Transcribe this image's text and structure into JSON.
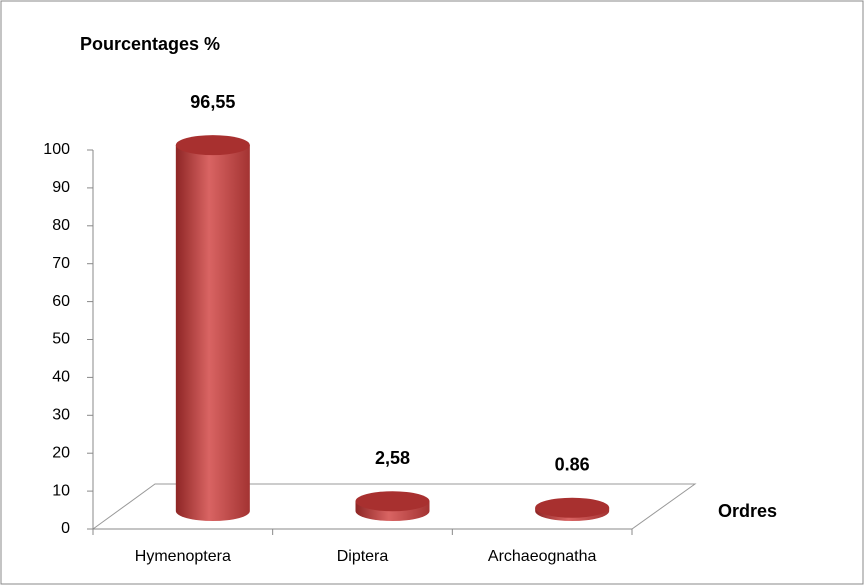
{
  "chart_data": {
    "type": "bar3d",
    "y_label": "Pourcentages %",
    "x_label": "Ordres",
    "categories": [
      "Hymenoptera",
      "Diptera",
      "Archaeognatha"
    ],
    "values": [
      96.55,
      2.58,
      0.86
    ],
    "value_labels": [
      "96,55",
      "2,58",
      "0.86"
    ],
    "color": "#c0403f",
    "ylim": [
      0,
      100
    ],
    "yticks": [
      0,
      10,
      20,
      30,
      40,
      50,
      60,
      70,
      80,
      90,
      100
    ]
  }
}
